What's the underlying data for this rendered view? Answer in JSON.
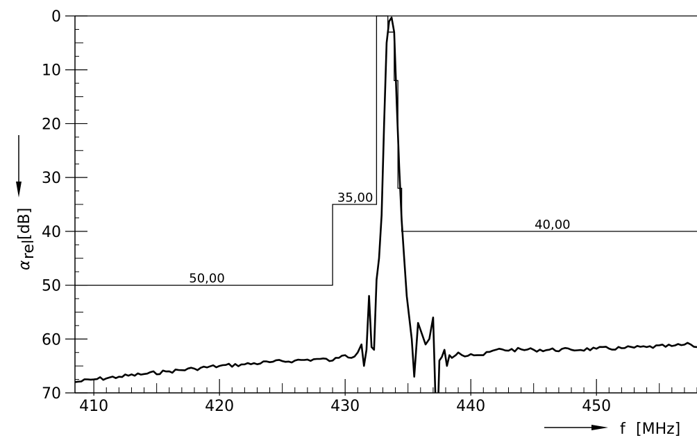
{
  "chart_data": {
    "type": "line",
    "title": "",
    "xlabel": "f",
    "xunit": "[MHz]",
    "ylabel_symbol": "α",
    "ylabel_sub": "rel",
    "yunit": "[dB]",
    "xlim": [
      408.5,
      458
    ],
    "ylim": [
      0,
      70
    ],
    "y_inverted": true,
    "x_ticks": [
      410,
      420,
      430,
      440,
      450
    ],
    "x_tick_labels": [
      "410",
      "420",
      "430",
      "440",
      "450"
    ],
    "y_ticks": [
      0,
      10,
      20,
      30,
      40,
      50,
      60,
      70
    ],
    "y_tick_labels": [
      "0",
      "10",
      "20",
      "30",
      "40",
      "50",
      "60",
      "70"
    ],
    "grid": false,
    "series": [
      {
        "role": "measured-response",
        "x": [
          408.5,
          410,
          412,
          414,
          416,
          418,
          420,
          422,
          424,
          426,
          428,
          429,
          429.5,
          430,
          430.5,
          431,
          431.3,
          431.5,
          431.7,
          431.9,
          432.1,
          432.3,
          432.5,
          432.7,
          432.9,
          433.1,
          433.3,
          433.5,
          433.7,
          433.9,
          434.1,
          434.3,
          434.5,
          434.7,
          434.9,
          435.1,
          435.3,
          435.5,
          435.8,
          436.1,
          436.4,
          436.7,
          437.0,
          437.3,
          437.5,
          437.9,
          438.1,
          438.3,
          438.5,
          438.8,
          439.0,
          439.3,
          440,
          441,
          442,
          445,
          448,
          450,
          452,
          454,
          456,
          457.5,
          458
        ],
        "y": [
          68,
          67.5,
          67,
          66.5,
          66,
          65.5,
          65,
          64.7,
          64.3,
          64,
          63.7,
          64,
          63.5,
          63,
          63.5,
          62.5,
          61,
          65,
          62,
          52,
          61.5,
          62,
          49,
          45,
          37,
          20,
          5,
          1,
          0.3,
          3,
          16,
          28,
          38,
          45,
          52,
          56,
          60,
          67,
          57,
          59,
          61,
          60,
          56,
          80,
          64,
          62,
          65,
          63,
          63.5,
          63,
          62.5,
          63,
          62.8,
          63,
          62,
          62,
          62,
          61.8,
          61.7,
          61.5,
          61.3,
          61,
          61.5
        ]
      },
      {
        "role": "limit-mask",
        "x": [
          408.5,
          429,
          429,
          432.5,
          432.5,
          433.4,
          433.4,
          433.9,
          433.9,
          434.2,
          434.2,
          434.5,
          434.5,
          458
        ],
        "y": [
          50,
          50,
          35,
          35,
          0,
          0,
          3,
          3,
          12,
          12,
          32,
          32,
          40,
          40
        ]
      }
    ],
    "annotations": [
      {
        "text": "50,00",
        "x": 419,
        "y": 50
      },
      {
        "text": "35,00",
        "x": 430.8,
        "y": 35
      },
      {
        "text": "40,00",
        "x": 446.5,
        "y": 40
      }
    ]
  }
}
